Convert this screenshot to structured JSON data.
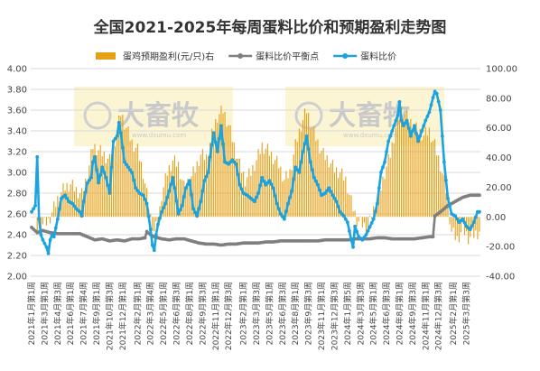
{
  "chart_data": {
    "type": "bar+line",
    "title": "全国2021-2025年每周蛋料比价和预期盈利走势图",
    "legend": {
      "position": "top",
      "entries": [
        {
          "name": "蛋鸡预期盈利(元/只)右",
          "kind": "bar",
          "color": "#e6a118"
        },
        {
          "name": "蛋料比价平衡点",
          "kind": "line",
          "color": "#7f7f7f"
        },
        {
          "name": "蛋料比价",
          "kind": "line",
          "color": "#1aa3e0"
        }
      ]
    },
    "left_axis": {
      "min": 2.0,
      "max": 4.0,
      "step": 0.2,
      "ticks": [
        "2.00",
        "2.20",
        "2.40",
        "2.60",
        "2.80",
        "3.00",
        "3.20",
        "3.40",
        "3.60",
        "3.80",
        "4.00"
      ]
    },
    "right_axis": {
      "min": -40,
      "max": 100,
      "step": 20,
      "ticks": [
        "-40.00",
        "-20.00",
        "0.00",
        "20.00",
        "40.00",
        "60.00",
        "80.00",
        "100.00"
      ]
    },
    "x_labels": [
      "2021年1月第1周",
      "2021年3月第1周",
      "2021年4月第3周",
      "2021年6月第1周",
      "2021年7月第4周",
      "2021年9月第1周",
      "2021年10月第3周",
      "2021年12月第1周",
      "2022年2月第1周",
      "2022年3月第4周",
      "2022年5月第1周",
      "2022年6月第3周",
      "2022年8月第1周",
      "2022年9月第3周",
      "2022年11月第1周",
      "2022年12月第3周",
      "2023年2月第1周",
      "2023年3月第3周",
      "2023年5月第1周",
      "2023年6月第3周",
      "2023年8月第1周",
      "2023年9月第3周",
      "2023年11月第1周",
      "2023年12月第3周",
      "2024年1月第5周",
      "2024年3月第3周",
      "2024年5月第1周",
      "2024年6月第3周",
      "2024年8月第1周",
      "2024年9月第3周",
      "2024年11月第1周",
      "2024年12月第3周",
      "2025年2月第1周",
      "2025年3月第3周"
    ],
    "x_label_positions": [
      0,
      7,
      14,
      21,
      28,
      35,
      42,
      49,
      57,
      64,
      71,
      78,
      85,
      92,
      99,
      106,
      114,
      121,
      128,
      135,
      142,
      149,
      156,
      163,
      170,
      177,
      184,
      191,
      198,
      205,
      212,
      219,
      227,
      234
    ],
    "weeks": 242,
    "series_anchors": {
      "ratio": [
        [
          0,
          2.62
        ],
        [
          2,
          2.68
        ],
        [
          3,
          3.15
        ],
        [
          4,
          2.55
        ],
        [
          5,
          2.4
        ],
        [
          6,
          2.35
        ],
        [
          8,
          2.28
        ],
        [
          9,
          2.22
        ],
        [
          10,
          2.35
        ],
        [
          11,
          2.4
        ],
        [
          12,
          2.38
        ],
        [
          14,
          2.55
        ],
        [
          16,
          2.75
        ],
        [
          18,
          2.78
        ],
        [
          20,
          2.72
        ],
        [
          22,
          2.7
        ],
        [
          24,
          2.65
        ],
        [
          26,
          2.62
        ],
        [
          27,
          2.58
        ],
        [
          28,
          2.72
        ],
        [
          30,
          2.9
        ],
        [
          32,
          2.95
        ],
        [
          33,
          3.1
        ],
        [
          34,
          3.15
        ],
        [
          36,
          2.9
        ],
        [
          38,
          3.05
        ],
        [
          40,
          2.95
        ],
        [
          42,
          2.8
        ],
        [
          44,
          3.3
        ],
        [
          46,
          3.35
        ],
        [
          47,
          3.48
        ],
        [
          48,
          3.38
        ],
        [
          50,
          3.1
        ],
        [
          52,
          3.05
        ],
        [
          54,
          3.0
        ],
        [
          56,
          2.85
        ],
        [
          58,
          2.8
        ],
        [
          60,
          2.78
        ],
        [
          62,
          2.7
        ],
        [
          64,
          2.45
        ],
        [
          65,
          2.3
        ],
        [
          66,
          2.25
        ],
        [
          67,
          2.4
        ],
        [
          68,
          2.5
        ],
        [
          70,
          2.62
        ],
        [
          72,
          2.7
        ],
        [
          74,
          2.82
        ],
        [
          76,
          2.95
        ],
        [
          77,
          2.85
        ],
        [
          79,
          2.6
        ],
        [
          81,
          2.68
        ],
        [
          83,
          2.85
        ],
        [
          85,
          2.92
        ],
        [
          87,
          2.65
        ],
        [
          89,
          2.58
        ],
        [
          91,
          2.72
        ],
        [
          93,
          2.92
        ],
        [
          95,
          3.0
        ],
        [
          96,
          3.15
        ],
        [
          98,
          3.38
        ],
        [
          100,
          3.2
        ],
        [
          102,
          3.45
        ],
        [
          104,
          3.1
        ],
        [
          106,
          3.08
        ],
        [
          108,
          3.12
        ],
        [
          110,
          3.08
        ],
        [
          112,
          2.88
        ],
        [
          114,
          2.8
        ],
        [
          116,
          2.78
        ],
        [
          118,
          2.75
        ],
        [
          120,
          2.72
        ],
        [
          122,
          2.8
        ],
        [
          124,
          2.95
        ],
        [
          126,
          2.88
        ],
        [
          128,
          2.92
        ],
        [
          130,
          2.85
        ],
        [
          132,
          2.7
        ],
        [
          134,
          2.6
        ],
        [
          136,
          2.55
        ],
        [
          138,
          2.7
        ],
        [
          140,
          2.82
        ],
        [
          142,
          3.05
        ],
        [
          144,
          3.0
        ],
        [
          146,
          3.2
        ],
        [
          148,
          3.35
        ],
        [
          150,
          3.1
        ],
        [
          152,
          2.95
        ],
        [
          154,
          2.88
        ],
        [
          156,
          2.78
        ],
        [
          158,
          2.8
        ],
        [
          160,
          2.85
        ],
        [
          162,
          2.78
        ],
        [
          164,
          2.72
        ],
        [
          166,
          2.62
        ],
        [
          168,
          2.58
        ],
        [
          170,
          2.52
        ],
        [
          172,
          2.35
        ],
        [
          173,
          2.28
        ],
        [
          174,
          2.48
        ],
        [
          176,
          2.38
        ],
        [
          178,
          2.35
        ],
        [
          180,
          2.4
        ],
        [
          184,
          2.55
        ],
        [
          186,
          2.7
        ],
        [
          188,
          3.0
        ],
        [
          190,
          3.1
        ],
        [
          192,
          3.3
        ],
        [
          194,
          3.4
        ],
        [
          196,
          3.5
        ],
        [
          197,
          3.55
        ],
        [
          198,
          3.68
        ],
        [
          199,
          3.5
        ],
        [
          200,
          3.45
        ],
        [
          202,
          3.5
        ],
        [
          204,
          3.35
        ],
        [
          206,
          3.45
        ],
        [
          208,
          3.3
        ],
        [
          210,
          3.4
        ],
        [
          212,
          3.5
        ],
        [
          214,
          3.58
        ],
        [
          216,
          3.72
        ],
        [
          217,
          3.78
        ],
        [
          218,
          3.76
        ],
        [
          219,
          3.68
        ],
        [
          220,
          3.6
        ],
        [
          222,
          3.1
        ],
        [
          224,
          2.75
        ],
        [
          226,
          2.6
        ],
        [
          228,
          2.58
        ],
        [
          230,
          2.52
        ],
        [
          232,
          2.55
        ],
        [
          234,
          2.48
        ],
        [
          236,
          2.45
        ],
        [
          238,
          2.52
        ],
        [
          240,
          2.62
        ],
        [
          241,
          2.62
        ]
      ],
      "balance": [
        [
          0,
          2.47
        ],
        [
          3,
          2.42
        ],
        [
          6,
          2.44
        ],
        [
          10,
          2.42
        ],
        [
          14,
          2.41
        ],
        [
          20,
          2.41
        ],
        [
          26,
          2.41
        ],
        [
          30,
          2.38
        ],
        [
          34,
          2.35
        ],
        [
          38,
          2.36
        ],
        [
          42,
          2.34
        ],
        [
          46,
          2.35
        ],
        [
          50,
          2.34
        ],
        [
          54,
          2.36
        ],
        [
          58,
          2.36
        ],
        [
          61,
          2.37
        ],
        [
          62,
          2.43
        ],
        [
          64,
          2.4
        ],
        [
          66,
          2.38
        ],
        [
          70,
          2.36
        ],
        [
          74,
          2.35
        ],
        [
          78,
          2.36
        ],
        [
          82,
          2.36
        ],
        [
          86,
          2.34
        ],
        [
          90,
          2.32
        ],
        [
          94,
          2.31
        ],
        [
          98,
          2.31
        ],
        [
          102,
          2.3
        ],
        [
          106,
          2.31
        ],
        [
          110,
          2.31
        ],
        [
          114,
          2.32
        ],
        [
          118,
          2.32
        ],
        [
          122,
          2.32
        ],
        [
          126,
          2.33
        ],
        [
          130,
          2.33
        ],
        [
          134,
          2.34
        ],
        [
          138,
          2.34
        ],
        [
          142,
          2.34
        ],
        [
          146,
          2.34
        ],
        [
          150,
          2.34
        ],
        [
          154,
          2.34
        ],
        [
          158,
          2.35
        ],
        [
          162,
          2.35
        ],
        [
          166,
          2.35
        ],
        [
          170,
          2.35
        ],
        [
          174,
          2.36
        ],
        [
          178,
          2.36
        ],
        [
          182,
          2.36
        ],
        [
          186,
          2.37
        ],
        [
          190,
          2.37
        ],
        [
          194,
          2.36
        ],
        [
          198,
          2.36
        ],
        [
          202,
          2.36
        ],
        [
          206,
          2.36
        ],
        [
          210,
          2.37
        ],
        [
          214,
          2.38
        ],
        [
          216,
          2.38
        ],
        [
          217,
          2.58
        ],
        [
          220,
          2.62
        ],
        [
          224,
          2.68
        ],
        [
          228,
          2.72
        ],
        [
          232,
          2.76
        ],
        [
          236,
          2.78
        ],
        [
          241,
          2.78
        ]
      ],
      "profit": [
        [
          0,
          4
        ],
        [
          3,
          -8
        ],
        [
          6,
          -5
        ],
        [
          9,
          -3
        ],
        [
          12,
          6
        ],
        [
          15,
          15
        ],
        [
          18,
          20
        ],
        [
          21,
          22
        ],
        [
          24,
          18
        ],
        [
          27,
          15
        ],
        [
          30,
          28
        ],
        [
          33,
          48
        ],
        [
          36,
          45
        ],
        [
          39,
          42
        ],
        [
          42,
          38
        ],
        [
          45,
          52
        ],
        [
          48,
          70
        ],
        [
          51,
          60
        ],
        [
          54,
          50
        ],
        [
          57,
          45
        ],
        [
          60,
          30
        ],
        [
          62,
          15
        ],
        [
          64,
          0
        ],
        [
          66,
          -10
        ],
        [
          68,
          -5
        ],
        [
          70,
          15
        ],
        [
          73,
          30
        ],
        [
          76,
          38
        ],
        [
          79,
          35
        ],
        [
          82,
          20
        ],
        [
          85,
          25
        ],
        [
          88,
          32
        ],
        [
          91,
          42
        ],
        [
          94,
          40
        ],
        [
          97,
          55
        ],
        [
          100,
          68
        ],
        [
          103,
          72
        ],
        [
          106,
          62
        ],
        [
          109,
          48
        ],
        [
          112,
          35
        ],
        [
          115,
          25
        ],
        [
          118,
          30
        ],
        [
          121,
          38
        ],
        [
          124,
          48
        ],
        [
          127,
          45
        ],
        [
          130,
          40
        ],
        [
          133,
          35
        ],
        [
          136,
          25
        ],
        [
          139,
          30
        ],
        [
          142,
          48
        ],
        [
          145,
          62
        ],
        [
          148,
          72
        ],
        [
          151,
          60
        ],
        [
          154,
          50
        ],
        [
          157,
          42
        ],
        [
          160,
          38
        ],
        [
          163,
          32
        ],
        [
          166,
          30
        ],
        [
          169,
          25
        ],
        [
          172,
          10
        ],
        [
          175,
          -2
        ],
        [
          178,
          -5
        ],
        [
          181,
          -8
        ],
        [
          184,
          5
        ],
        [
          187,
          15
        ],
        [
          190,
          30
        ],
        [
          193,
          42
        ],
        [
          196,
          60
        ],
        [
          199,
          72
        ],
        [
          202,
          68
        ],
        [
          205,
          62
        ],
        [
          208,
          58
        ],
        [
          211,
          55
        ],
        [
          214,
          58
        ],
        [
          217,
          48
        ],
        [
          220,
          35
        ],
        [
          223,
          18
        ],
        [
          226,
          -10
        ],
        [
          229,
          -15
        ],
        [
          232,
          -8
        ],
        [
          235,
          -14
        ],
        [
          238,
          -12
        ],
        [
          241,
          -10
        ]
      ]
    },
    "watermark": {
      "brand": "大畜牧",
      "url": "www.dxumu.com"
    }
  }
}
